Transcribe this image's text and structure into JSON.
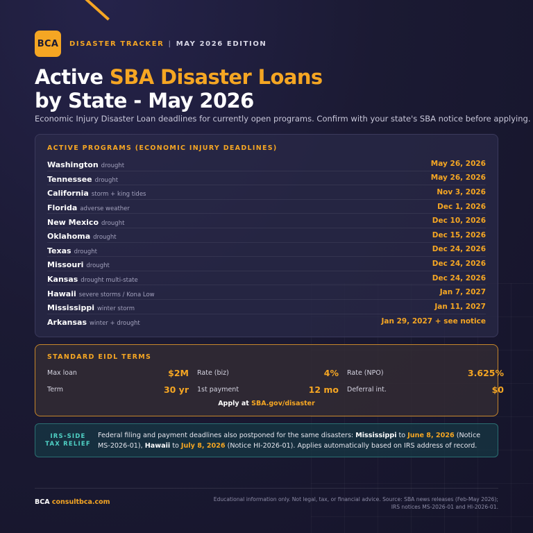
{
  "header": {
    "logo": "BCA",
    "brand": "DISASTER TRACKER",
    "separator": "|",
    "edition": "MAY 2026 EDITION"
  },
  "title": {
    "line1_plain": "Active ",
    "line1_accent": "SBA Disaster Loans",
    "line2": "by State - May 2026"
  },
  "subtitle": "Economic Injury Disaster Loan deadlines for currently open programs. Confirm with your state's SBA notice before applying.",
  "programs": {
    "heading": "ACTIVE PROGRAMS (ECONOMIC INJURY DEADLINES)",
    "rows": [
      {
        "state": "Washington",
        "note": "drought",
        "date": "May 26, 2026"
      },
      {
        "state": "Tennessee",
        "note": "drought",
        "date": "May 26, 2026"
      },
      {
        "state": "California",
        "note": "storm + king tides",
        "date": "Nov 3, 2026"
      },
      {
        "state": "Florida",
        "note": "adverse weather",
        "date": "Dec 1, 2026"
      },
      {
        "state": "New Mexico",
        "note": "drought",
        "date": "Dec 10, 2026"
      },
      {
        "state": "Oklahoma",
        "note": "drought",
        "date": "Dec 15, 2026"
      },
      {
        "state": "Texas",
        "note": "drought",
        "date": "Dec 24, 2026"
      },
      {
        "state": "Missouri",
        "note": "drought",
        "date": "Dec 24, 2026"
      },
      {
        "state": "Kansas",
        "note": "drought multi-state",
        "date": "Dec 24, 2026"
      },
      {
        "state": "Hawaii",
        "note": "severe storms / Kona Low",
        "date": "Jan 7, 2027"
      },
      {
        "state": "Mississippi",
        "note": "winter storm",
        "date": "Jan 11, 2027"
      },
      {
        "state": "Arkansas",
        "note": "winter + drought",
        "date": "Jan 29, 2027 + see notice"
      }
    ]
  },
  "terms": {
    "heading": "STANDARD EIDL TERMS",
    "cells": [
      {
        "label": "Max loan",
        "value": "$2M"
      },
      {
        "label": "Rate (biz)",
        "value": "4%"
      },
      {
        "label": "Rate (NPO)",
        "value": "3.625%"
      },
      {
        "label": "Term",
        "value": "30 yr"
      },
      {
        "label": "1st payment",
        "value": "12 mo"
      },
      {
        "label": "Deferral int.",
        "value": "$0"
      }
    ],
    "apply_prefix": "Apply at ",
    "apply_link": "SBA.gov/disaster"
  },
  "relief": {
    "tag_line1": "IRS-SIDE",
    "tag_line2": "TAX RELIEF",
    "text_1": "Federal filing and payment deadlines also postponed for the same disasters: ",
    "state_1": "Mississippi",
    "to_1": " to ",
    "date_1": "June 8, 2026",
    "notice_1": " (Notice MS-2026-01), ",
    "state_2": "Hawaii",
    "to_2": " to ",
    "date_2": "July 8, 2026",
    "notice_2": " (Notice HI-2026-01). Applies automatically based on IRS address of record."
  },
  "footer": {
    "brand": "BCA",
    "site": "consultbca.com",
    "disclaimer_line1": "Educational information only. Not legal, tax, or financial advice. Source: SBA news releases (Feb-May 2026);",
    "disclaimer_line2": "IRS notices MS-2026-01 and HI-2026-01."
  },
  "colors": {
    "background": "#1b1a33",
    "accent": "#f5a623",
    "teal": "#4fd1c5"
  }
}
